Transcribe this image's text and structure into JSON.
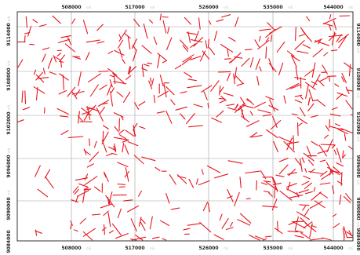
{
  "map": {
    "x_ticks": [
      {
        "value": "508000",
        "unit": "mE"
      },
      {
        "value": "517000",
        "unit": "mE"
      },
      {
        "value": "526000",
        "unit": "mE"
      },
      {
        "value": "535000",
        "unit": "mE"
      },
      {
        "value": "544000",
        "unit": "mE"
      }
    ],
    "y_ticks": [
      {
        "value": "9114000",
        "unit": "mN"
      },
      {
        "value": "9108000",
        "unit": "mN"
      },
      {
        "value": "9102000",
        "unit": "mN"
      },
      {
        "value": "9096000",
        "unit": "mN"
      },
      {
        "value": "9090000",
        "unit": "mN"
      },
      {
        "value": "9084000",
        "unit": "mN"
      }
    ],
    "colors": {
      "frame": "#000000",
      "grid": "#a0a0a0",
      "lineament": "#e8141c"
    },
    "segment_count": 560
  }
}
